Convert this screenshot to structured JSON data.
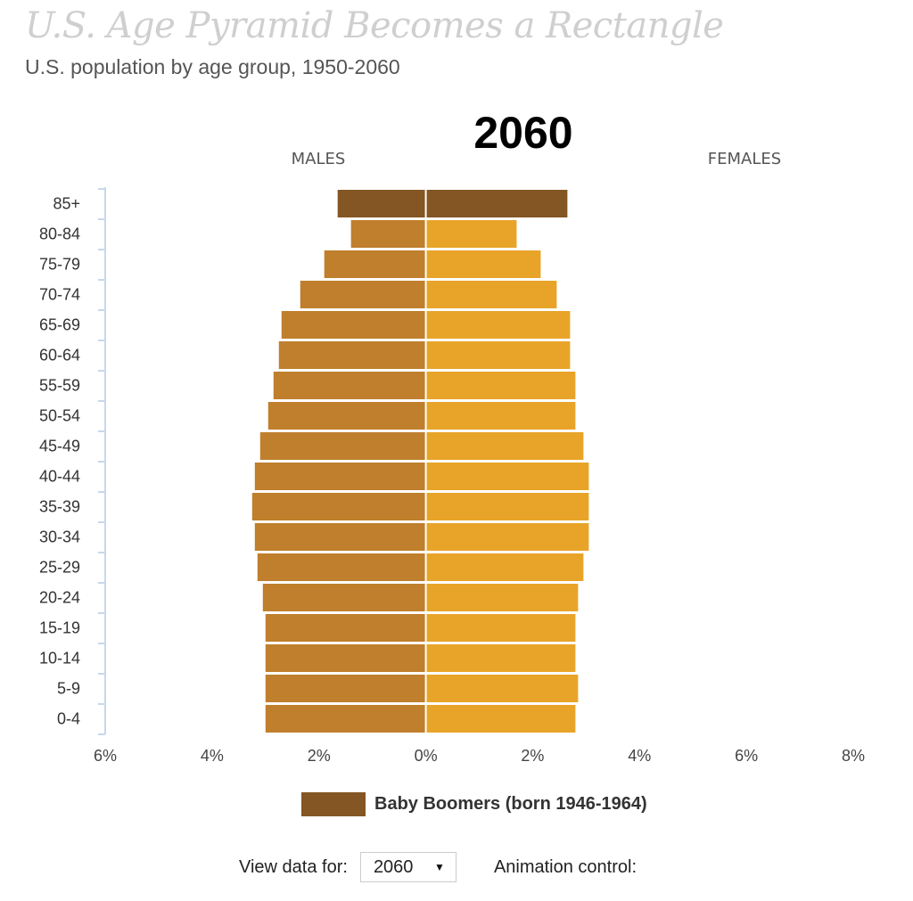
{
  "header": {
    "title": "U.S. Age Pyramid Becomes a Rectangle",
    "subtitle": "U.S. population by age group, 1950-2060"
  },
  "chart_data": {
    "type": "bar",
    "year_label": "2060",
    "left_label": "MALES",
    "right_label": "FEMALES",
    "categories": [
      "85+",
      "80-84",
      "75-79",
      "70-74",
      "65-69",
      "60-64",
      "55-59",
      "50-54",
      "45-49",
      "40-44",
      "35-39",
      "30-34",
      "25-29",
      "20-24",
      "15-19",
      "10-14",
      "5-9",
      "0-4"
    ],
    "x_tick_labels": [
      "6%",
      "4%",
      "2%",
      "0%",
      "2%",
      "4%",
      "6%",
      "8%"
    ],
    "x_unit": "%",
    "xlim": [
      -6,
      8
    ],
    "series": [
      {
        "name": "MALES",
        "values": [
          1.65,
          1.4,
          1.9,
          2.35,
          2.7,
          2.75,
          2.85,
          2.95,
          3.1,
          3.2,
          3.25,
          3.2,
          3.15,
          3.05,
          3.0,
          3.0,
          3.0,
          3.0
        ]
      },
      {
        "name": "FEMALES",
        "values": [
          2.65,
          1.7,
          2.15,
          2.45,
          2.7,
          2.7,
          2.8,
          2.8,
          2.95,
          3.05,
          3.05,
          3.05,
          2.95,
          2.85,
          2.8,
          2.8,
          2.85,
          2.8
        ]
      }
    ],
    "highlight": {
      "label": "Baby Boomers (born 1946-1964)",
      "categories": [
        "85+"
      ]
    },
    "colors": {
      "male": "#bf7f2c",
      "female": "#e8a428",
      "boomers": "#845623",
      "axis": "#c6d8ea"
    },
    "grid": false,
    "legend_position": "bottom-center"
  },
  "controls": {
    "view_label": "View data for:",
    "year_value": "2060",
    "animation_label": "Animation control:"
  }
}
